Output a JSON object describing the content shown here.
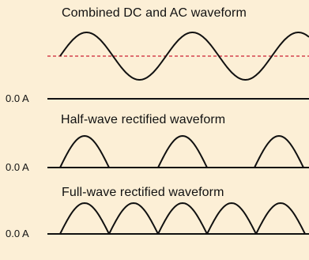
{
  "colors": {
    "background": "#fcefd6",
    "waveform": "#111111",
    "dc_level_line": "#cc2233"
  },
  "panels": [
    {
      "title": "Combined DC and AC waveform",
      "baseline_label": "0.0 A",
      "kind": "combined"
    },
    {
      "title": "Half-wave rectified waveform",
      "baseline_label": "0.0 A",
      "kind": "half-wave"
    },
    {
      "title": "Full-wave rectified waveform",
      "baseline_label": "0.0 A",
      "kind": "full-wave"
    }
  ]
}
